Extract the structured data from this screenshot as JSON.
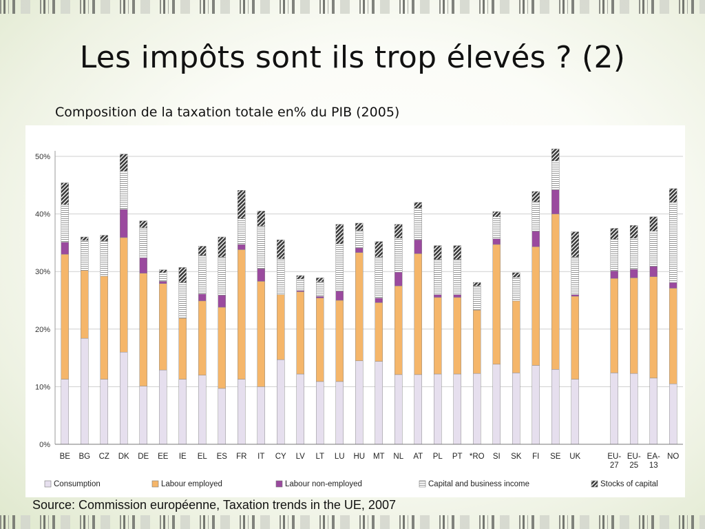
{
  "slide": {
    "title": "Les impôts sont ils trop élevés ? (2)",
    "subtitle": "Composition de la taxation totale en% du PIB (2005)",
    "source": "Source: Commission européenne, Taxation trends in the UE, 2007"
  },
  "chart_data": {
    "type": "bar",
    "stacked": true,
    "title": "",
    "xlabel": "",
    "ylabel": "",
    "ylim": [
      0,
      50
    ],
    "yticks": [
      0,
      10,
      20,
      30,
      40,
      50
    ],
    "ytick_labels": [
      "0%",
      "10%",
      "20%",
      "30%",
      "40%",
      "50%"
    ],
    "grid": true,
    "legend_position": "bottom",
    "categories": [
      "BE",
      "BG",
      "CZ",
      "DK",
      "DE",
      "EE",
      "IE",
      "EL",
      "ES",
      "FR",
      "IT",
      "CY",
      "LV",
      "LT",
      "LU",
      "HU",
      "MT",
      "NL",
      "AT",
      "PL",
      "PT",
      "RO",
      "SI",
      "SK",
      "FI",
      "SE",
      "UK",
      "",
      "EU-27",
      "EU-25",
      "EA-13",
      "NO"
    ],
    "category_labels": [
      [
        "BE"
      ],
      [
        "BG"
      ],
      [
        "CZ"
      ],
      [
        "DK"
      ],
      [
        "DE"
      ],
      [
        "EE"
      ],
      [
        "IE"
      ],
      [
        "EL"
      ],
      [
        "ES"
      ],
      [
        "FR"
      ],
      [
        "IT"
      ],
      [
        "CY"
      ],
      [
        "LV"
      ],
      [
        "LT"
      ],
      [
        "LU"
      ],
      [
        "HU"
      ],
      [
        "MT"
      ],
      [
        "NL"
      ],
      [
        "AT"
      ],
      [
        "PL"
      ],
      [
        "PT"
      ],
      [
        "*RO"
      ],
      [
        "SI"
      ],
      [
        "SK"
      ],
      [
        "FI"
      ],
      [
        "SE"
      ],
      [
        "UK"
      ],
      [
        ""
      ],
      [
        "EU-",
        "27"
      ],
      [
        "EU-",
        "25"
      ],
      [
        "EA-",
        "13"
      ],
      [
        "NO"
      ]
    ],
    "series": [
      {
        "name": "Consumption",
        "color": "#e6dfee",
        "pattern": "solid",
        "values": [
          11.3,
          18.4,
          11.3,
          16.0,
          10.1,
          12.9,
          11.3,
          12.0,
          9.7,
          11.3,
          10.0,
          14.7,
          12.2,
          10.9,
          10.9,
          14.5,
          14.4,
          12.1,
          12.1,
          12.2,
          12.2,
          12.3,
          13.9,
          12.4,
          13.7,
          13.0,
          11.3,
          null,
          12.4,
          12.3,
          11.5,
          10.5
        ]
      },
      {
        "name": "Labour employed",
        "color": "#f5b66a",
        "pattern": "solid",
        "values": [
          21.7,
          11.8,
          17.9,
          19.9,
          19.6,
          15.0,
          10.6,
          12.9,
          14.1,
          22.5,
          18.3,
          11.3,
          14.3,
          14.5,
          14.1,
          18.8,
          10.2,
          15.4,
          21.0,
          13.3,
          13.3,
          11.0,
          20.8,
          12.5,
          20.6,
          27.0,
          14.4,
          null,
          16.4,
          16.6,
          17.6,
          16.6
        ]
      },
      {
        "name": "Labour non-employed",
        "color": "#9a4a9e",
        "pattern": "solid",
        "values": [
          2.1,
          0.0,
          0.0,
          4.9,
          2.7,
          0.4,
          0.0,
          1.2,
          2.1,
          0.9,
          2.2,
          0.0,
          0.2,
          0.3,
          1.6,
          0.8,
          0.8,
          2.4,
          2.4,
          0.5,
          0.5,
          0.0,
          1.0,
          0.0,
          2.7,
          4.2,
          0.3,
          null,
          1.3,
          1.5,
          1.8,
          1.0
        ]
      },
      {
        "name": "Capital and business income",
        "color": "#ffffff",
        "pattern": "hlines",
        "values": [
          6.5,
          5.2,
          6.1,
          6.6,
          5.2,
          1.5,
          6.2,
          6.7,
          6.6,
          4.5,
          7.4,
          6.2,
          2.0,
          2.5,
          8.2,
          3.0,
          7.1,
          5.9,
          5.5,
          6.1,
          6.1,
          4.2,
          3.8,
          4.1,
          5.1,
          5.0,
          6.5,
          null,
          5.5,
          5.4,
          6.1,
          13.9
        ]
      },
      {
        "name": "Stocks of capital",
        "color": "#555555",
        "pattern": "diagonal",
        "values": [
          3.8,
          0.6,
          1.0,
          3.0,
          1.2,
          0.5,
          2.6,
          1.6,
          3.5,
          4.9,
          2.6,
          3.3,
          0.6,
          0.7,
          3.4,
          1.3,
          2.7,
          2.4,
          1.0,
          2.4,
          2.4,
          0.6,
          0.9,
          0.8,
          1.8,
          2.1,
          4.4,
          null,
          1.9,
          2.2,
          2.5,
          2.4
        ]
      }
    ]
  }
}
